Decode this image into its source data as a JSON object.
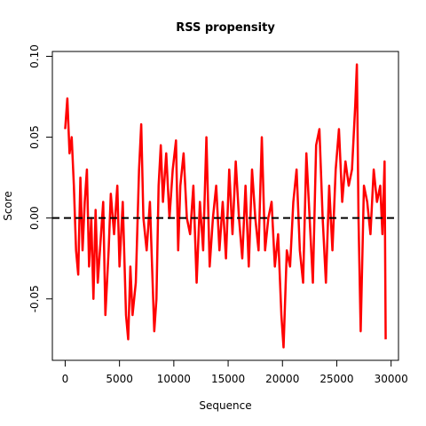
{
  "chart_data": {
    "type": "line",
    "title": "RSS propensity",
    "x_label": "Sequence",
    "y_label": "Score",
    "x": [
      0,
      200,
      400,
      600,
      800,
      1000,
      1200,
      1400,
      1600,
      1800,
      2000,
      2200,
      2400,
      2600,
      2800,
      3000,
      3200,
      3500,
      3700,
      4000,
      4200,
      4500,
      4800,
      5000,
      5300,
      5600,
      5800,
      6000,
      6200,
      6500,
      6800,
      7000,
      7200,
      7500,
      7800,
      8000,
      8200,
      8400,
      8600,
      8800,
      9000,
      9300,
      9600,
      9900,
      10200,
      10400,
      10600,
      10900,
      11200,
      11500,
      11800,
      12100,
      12400,
      12700,
      13000,
      13300,
      13600,
      13900,
      14200,
      14500,
      14800,
      15100,
      15400,
      15700,
      16000,
      16300,
      16600,
      16900,
      17200,
      17500,
      17800,
      18100,
      18400,
      18700,
      19000,
      19300,
      19600,
      19900,
      20100,
      20400,
      20700,
      21000,
      21300,
      21600,
      21900,
      22200,
      22500,
      22800,
      23100,
      23400,
      23700,
      24000,
      24300,
      24600,
      24900,
      25200,
      25500,
      25800,
      26100,
      26400,
      26700,
      26850,
      27000,
      27200,
      27500,
      27800,
      28100,
      28400,
      28700,
      29000,
      29200,
      29400,
      29500
    ],
    "series": [
      {
        "name": "RSS propensity",
        "color": "#ff0000",
        "values": [
          0.055,
          0.074,
          0.04,
          0.05,
          0.02,
          -0.02,
          -0.035,
          0.025,
          -0.02,
          0.01,
          0.03,
          -0.03,
          0.0,
          -0.05,
          0.005,
          -0.04,
          -0.02,
          0.01,
          -0.06,
          -0.02,
          0.015,
          -0.01,
          0.02,
          -0.03,
          0.01,
          -0.06,
          -0.075,
          -0.03,
          -0.06,
          -0.04,
          0.03,
          0.058,
          0.0,
          -0.02,
          0.01,
          -0.03,
          -0.07,
          -0.05,
          0.02,
          0.045,
          0.01,
          0.04,
          0.0,
          0.03,
          0.048,
          -0.02,
          0.02,
          0.04,
          0.0,
          -0.01,
          0.02,
          -0.04,
          0.01,
          -0.02,
          0.05,
          -0.03,
          0.0,
          0.02,
          -0.02,
          0.01,
          -0.025,
          0.03,
          -0.01,
          0.035,
          0.0,
          -0.025,
          0.02,
          -0.03,
          0.03,
          0.0,
          -0.02,
          0.05,
          -0.02,
          0.0,
          0.01,
          -0.03,
          -0.01,
          -0.06,
          -0.08,
          -0.02,
          -0.03,
          0.01,
          0.03,
          -0.02,
          -0.04,
          0.04,
          0.0,
          -0.04,
          0.045,
          0.055,
          0.0,
          -0.04,
          0.02,
          -0.02,
          0.03,
          0.055,
          0.01,
          0.035,
          0.02,
          0.03,
          0.07,
          0.095,
          0.0,
          -0.07,
          0.02,
          0.01,
          -0.01,
          0.03,
          0.01,
          0.02,
          -0.01,
          0.035,
          -0.075
        ]
      }
    ],
    "xlim": [
      -1180,
      30680
    ],
    "ylim": [
      -0.088,
      0.103
    ],
    "xticks": [
      0,
      5000,
      10000,
      15000,
      20000,
      25000,
      30000
    ],
    "yticks": [
      -0.05,
      {
        "value": 0,
        "label": "0.00"
      },
      0.05,
      {
        "value": 0.1,
        "label": "0.10"
      }
    ],
    "hline": 0
  }
}
